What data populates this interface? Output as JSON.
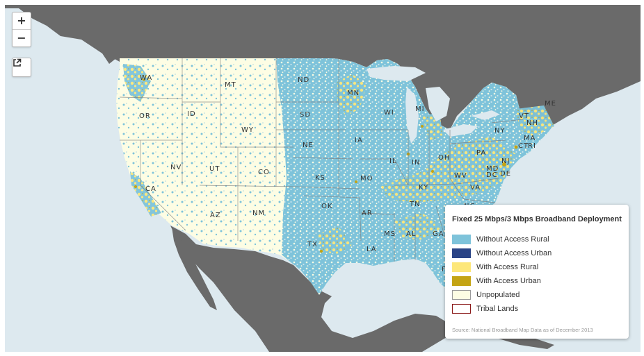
{
  "map": {
    "zoom_in_label": "+",
    "zoom_out_label": "−",
    "external_link_icon": "external-link-icon",
    "colors": {
      "water": "#dde9ef",
      "outside_land": "#6a6a6a",
      "unpopulated": "#fdfde4",
      "without_access_rural": "#7ec3da",
      "without_access_urban": "#2a4486",
      "with_access_rural": "#fde77a",
      "with_access_urban": "#c4a414",
      "tribal_lands": "#8b1a1a"
    },
    "state_labels": [
      {
        "id": "wa",
        "text": "WA"
      },
      {
        "id": "or",
        "text": "OR"
      },
      {
        "id": "ca",
        "text": "CA"
      },
      {
        "id": "id",
        "text": "ID"
      },
      {
        "id": "nv",
        "text": "NV"
      },
      {
        "id": "mt",
        "text": "MT"
      },
      {
        "id": "wy",
        "text": "WY"
      },
      {
        "id": "ut",
        "text": "UT"
      },
      {
        "id": "az",
        "text": "AZ"
      },
      {
        "id": "co",
        "text": "CO"
      },
      {
        "id": "nm",
        "text": "NM"
      },
      {
        "id": "nd",
        "text": "ND"
      },
      {
        "id": "sd",
        "text": "SD"
      },
      {
        "id": "ne",
        "text": "NE"
      },
      {
        "id": "ks",
        "text": "KS"
      },
      {
        "id": "ok",
        "text": "OK"
      },
      {
        "id": "tx",
        "text": "TX"
      },
      {
        "id": "mn",
        "text": "MN"
      },
      {
        "id": "ia",
        "text": "IA"
      },
      {
        "id": "mo",
        "text": "MO"
      },
      {
        "id": "ar",
        "text": "AR"
      },
      {
        "id": "la",
        "text": "LA"
      },
      {
        "id": "wi",
        "text": "WI"
      },
      {
        "id": "il",
        "text": "IL"
      },
      {
        "id": "mi",
        "text": "MI"
      },
      {
        "id": "in",
        "text": "IN"
      },
      {
        "id": "oh",
        "text": "OH"
      },
      {
        "id": "ky",
        "text": "KY"
      },
      {
        "id": "tn",
        "text": "TN"
      },
      {
        "id": "ms",
        "text": "MS"
      },
      {
        "id": "al",
        "text": "AL"
      },
      {
        "id": "ga",
        "text": "GA"
      },
      {
        "id": "fl",
        "text": "FL"
      },
      {
        "id": "sc",
        "text": "SC"
      },
      {
        "id": "nc",
        "text": "NC"
      },
      {
        "id": "va",
        "text": "VA"
      },
      {
        "id": "wv",
        "text": "WV"
      },
      {
        "id": "pa",
        "text": "PA"
      },
      {
        "id": "ny",
        "text": "NY"
      },
      {
        "id": "vt",
        "text": "VT"
      },
      {
        "id": "nh",
        "text": "NH"
      },
      {
        "id": "me",
        "text": "ME"
      },
      {
        "id": "ma",
        "text": "MA"
      },
      {
        "id": "ct",
        "text": "CT"
      },
      {
        "id": "ri",
        "text": "RI"
      },
      {
        "id": "nj",
        "text": "NJ"
      },
      {
        "id": "md",
        "text": "MD"
      },
      {
        "id": "de",
        "text": "DE"
      },
      {
        "id": "dc",
        "text": "DC"
      }
    ]
  },
  "legend": {
    "title": "Fixed 25 Mbps/3 Mbps Broadband Deployment",
    "items": [
      {
        "label": "Without Access Rural",
        "fill": "#7ec3da",
        "border": "#7ec3da"
      },
      {
        "label": "Without Access Urban",
        "fill": "#2a4486",
        "border": "#2a4486"
      },
      {
        "label": "With Access Rural",
        "fill": "#fde77a",
        "border": "#fde77a"
      },
      {
        "label": "With Access Urban",
        "fill": "#c4a414",
        "border": "#c4a414"
      },
      {
        "label": "Unpopulated",
        "fill": "#fdfde4",
        "border": "#9a9a9a"
      },
      {
        "label": "Tribal Lands",
        "fill": "#ffffff",
        "border": "#8b1a1a"
      }
    ],
    "source": "Source: National Broadband Map Data as of December 2013"
  }
}
